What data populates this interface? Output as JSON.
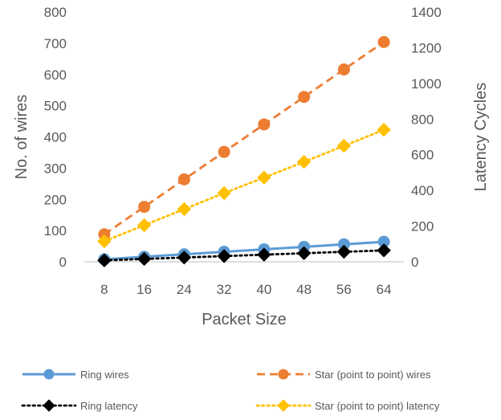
{
  "chart_data": {
    "type": "line",
    "title": "",
    "categories": [
      "8",
      "16",
      "24",
      "32",
      "40",
      "48",
      "56",
      "64"
    ],
    "xlabel": "Packet Size",
    "ylabel": "No. of wires",
    "y2label": "Latency Cycles",
    "ylim": [
      0,
      800
    ],
    "y2lim": [
      0,
      1400
    ],
    "yticks": [
      "0",
      "100",
      "200",
      "300",
      "400",
      "500",
      "600",
      "700",
      "800"
    ],
    "y2ticks": [
      "0",
      "200",
      "400",
      "600",
      "800",
      "1000",
      "1200",
      "1400"
    ],
    "grid": false,
    "legend_position": "bottom",
    "series": [
      {
        "name": "Ring wires",
        "axis": "left",
        "color": "#5B9BD5",
        "line_style": "solid",
        "marker": "circle",
        "values": [
          8,
          16,
          24,
          32,
          40,
          48,
          56,
          64
        ]
      },
      {
        "name": "Star (point to point) wires",
        "axis": "left",
        "color": "#ED7D31",
        "line_style": "dashed",
        "marker": "circle",
        "values": [
          88,
          176,
          264,
          352,
          440,
          528,
          616,
          704
        ]
      },
      {
        "name": "Ring latency",
        "axis": "right",
        "color": "#000000",
        "line_style": "dotted",
        "marker": "diamond",
        "values": [
          8,
          16,
          24,
          32,
          40,
          48,
          56,
          64
        ]
      },
      {
        "name": "Star (point to point) latency",
        "axis": "right",
        "color": "#FFC000",
        "line_style": "dotted",
        "marker": "diamond",
        "values": [
          115,
          205,
          295,
          385,
          472,
          560,
          650,
          740
        ]
      }
    ]
  }
}
